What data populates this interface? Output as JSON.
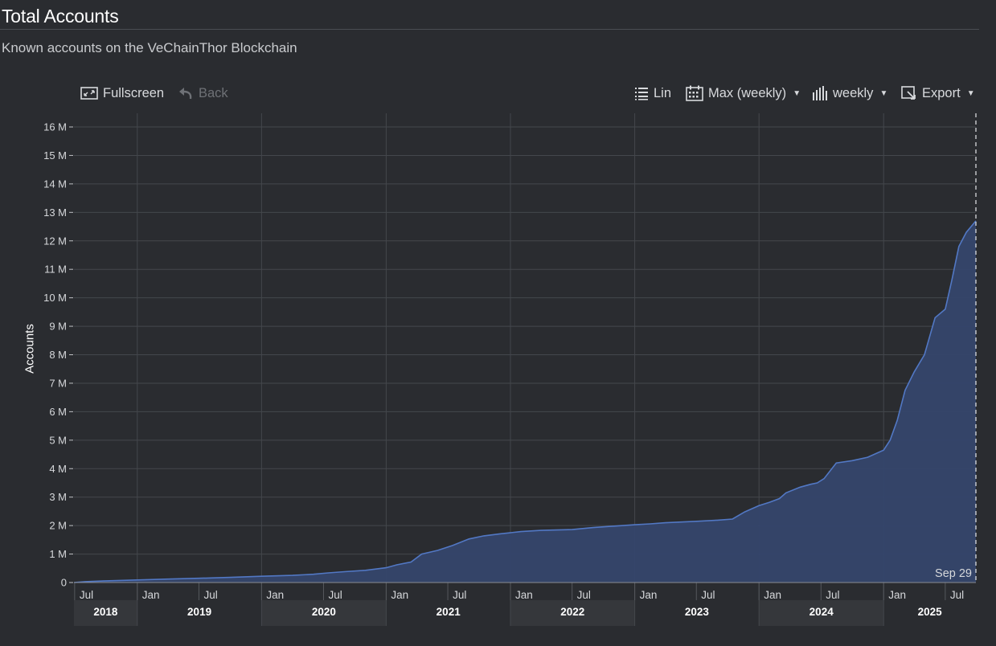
{
  "header": {
    "title": "Total Accounts",
    "subtitle": "Known accounts on the VeChainThor Blockchain"
  },
  "toolbar": {
    "fullscreen_label": "Fullscreen",
    "back_label": "Back",
    "scale_label": "Lin",
    "range_label": "Max (weekly)",
    "interval_label": "weekly",
    "export_label": "Export"
  },
  "colors": {
    "background": "#2a2c30",
    "line": "#5278c4",
    "area": "#35466b",
    "grid": "#44474c",
    "year_band": "#35373b"
  },
  "chart_data": {
    "type": "area",
    "ylabel": "Accounts",
    "ylim": [
      0,
      16000000
    ],
    "yticks": [
      {
        "v": 0,
        "label": "0"
      },
      {
        "v": 1000000,
        "label": "1 M"
      },
      {
        "v": 2000000,
        "label": "2 M"
      },
      {
        "v": 3000000,
        "label": "3 M"
      },
      {
        "v": 4000000,
        "label": "4 M"
      },
      {
        "v": 5000000,
        "label": "5 M"
      },
      {
        "v": 6000000,
        "label": "6 M"
      },
      {
        "v": 7000000,
        "label": "7 M"
      },
      {
        "v": 8000000,
        "label": "8 M"
      },
      {
        "v": 9000000,
        "label": "9 M"
      },
      {
        "v": 10000000,
        "label": "10 M"
      },
      {
        "v": 11000000,
        "label": "11 M"
      },
      {
        "v": 12000000,
        "label": "12 M"
      },
      {
        "v": 13000000,
        "label": "13 M"
      },
      {
        "v": 14000000,
        "label": "14 M"
      },
      {
        "v": 15000000,
        "label": "15 M"
      },
      {
        "v": 16000000,
        "label": "16 M"
      }
    ],
    "xlim": [
      "2018-06-29",
      "2025-09-29"
    ],
    "month_ticks": [
      {
        "date": "2018-07-01",
        "label": "Jul"
      },
      {
        "date": "2019-01-01",
        "label": "Jan"
      },
      {
        "date": "2019-07-01",
        "label": "Jul"
      },
      {
        "date": "2020-01-01",
        "label": "Jan"
      },
      {
        "date": "2020-07-01",
        "label": "Jul"
      },
      {
        "date": "2021-01-01",
        "label": "Jan"
      },
      {
        "date": "2021-07-01",
        "label": "Jul"
      },
      {
        "date": "2022-01-01",
        "label": "Jan"
      },
      {
        "date": "2022-07-01",
        "label": "Jul"
      },
      {
        "date": "2023-01-01",
        "label": "Jan"
      },
      {
        "date": "2023-07-01",
        "label": "Jul"
      },
      {
        "date": "2024-01-01",
        "label": "Jan"
      },
      {
        "date": "2024-07-01",
        "label": "Jul"
      },
      {
        "date": "2025-01-01",
        "label": "Jan"
      },
      {
        "date": "2025-07-01",
        "label": "Jul"
      }
    ],
    "year_labels": [
      "2018",
      "2019",
      "2020",
      "2021",
      "2022",
      "2023",
      "2024",
      "2025"
    ],
    "cursor_label": "Sep 29",
    "series": [
      {
        "x": [
          "2018-06-29",
          "2018-08-01",
          "2018-10-01",
          "2019-01-01",
          "2019-04-01",
          "2019-07-01",
          "2019-10-01",
          "2020-01-01",
          "2020-04-01",
          "2020-06-01",
          "2020-07-15",
          "2020-09-01",
          "2020-11-01",
          "2021-01-01",
          "2021-02-01",
          "2021-03-15",
          "2021-04-15",
          "2021-06-01",
          "2021-07-15",
          "2021-09-01",
          "2021-10-15",
          "2021-12-01",
          "2022-02-01",
          "2022-04-01",
          "2022-07-01",
          "2022-09-01",
          "2022-11-01",
          "2023-01-01",
          "2023-02-15",
          "2023-04-01",
          "2023-07-01",
          "2023-09-01",
          "2023-10-15",
          "2023-11-20",
          "2024-01-01",
          "2024-02-01",
          "2024-03-01",
          "2024-03-20",
          "2024-05-01",
          "2024-06-01",
          "2024-06-20",
          "2024-07-10",
          "2024-08-15",
          "2024-10-01",
          "2024-11-15",
          "2025-01-01",
          "2025-01-20",
          "2025-02-10",
          "2025-03-05",
          "2025-04-01",
          "2025-05-01",
          "2025-06-01",
          "2025-07-01",
          "2025-07-20",
          "2025-08-10",
          "2025-09-01",
          "2025-09-29"
        ],
        "y": [
          0,
          30000,
          60000,
          90000,
          120000,
          150000,
          180000,
          220000,
          250000,
          290000,
          340000,
          380000,
          430000,
          520000,
          620000,
          720000,
          1000000,
          1130000,
          1300000,
          1530000,
          1640000,
          1710000,
          1790000,
          1830000,
          1860000,
          1930000,
          1980000,
          2030000,
          2060000,
          2100000,
          2150000,
          2190000,
          2230000,
          2480000,
          2700000,
          2820000,
          2950000,
          3150000,
          3350000,
          3450000,
          3500000,
          3650000,
          4200000,
          4280000,
          4400000,
          4650000,
          5000000,
          5700000,
          6750000,
          7400000,
          8000000,
          9300000,
          9600000,
          10600000,
          11800000,
          12300000,
          12700000
        ]
      }
    ]
  }
}
